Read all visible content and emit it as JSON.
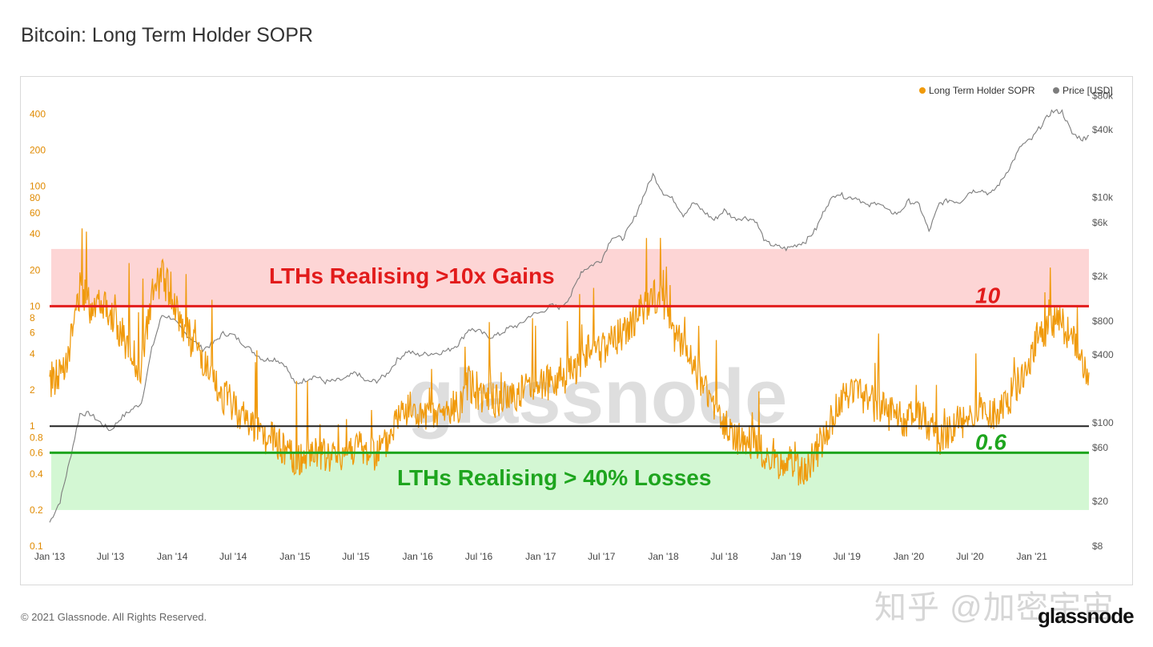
{
  "page": {
    "title": "Bitcoin: Long Term Holder SOPR",
    "footer": "© 2021 Glassnode. All Rights Reserved.",
    "brand_logo": "glassnode",
    "chart_watermark": "glassnode",
    "cn_watermark": "知乎 @加密宇宙"
  },
  "colors": {
    "sopr": "#f09a0c",
    "price": "#7d7d7d",
    "gain_band": "#fdd5d5",
    "loss_band": "#d3f7d3",
    "line_10": "#e21b1b",
    "line_06": "#1ea51e",
    "line_1": "#222222",
    "left_tick": "#e08a00",
    "right_tick": "#555555"
  },
  "chart_data": {
    "type": "line",
    "title": "Bitcoin: Long Term Holder SOPR",
    "legend": {
      "placement": "top-right",
      "entries": [
        "Long Term Holder SOPR",
        "Price [USD]"
      ]
    },
    "x_ticks": [
      "Jan '13",
      "Jul '13",
      "Jan '14",
      "Jul '14",
      "Jan '15",
      "Jul '15",
      "Jan '16",
      "Jul '16",
      "Jan '17",
      "Jul '17",
      "Jan '18",
      "Jul '18",
      "Jan '19",
      "Jul '19",
      "Jan '20",
      "Jul '20",
      "Jan '21"
    ],
    "xlim": [
      "2013-01-01",
      "2021-06-20"
    ],
    "y_left": {
      "scale": "log",
      "range": [
        0.1,
        600
      ],
      "ticks": [
        "400",
        "200",
        "100",
        "80",
        "60",
        "40",
        "20",
        "10",
        "8",
        "6",
        "4",
        "2",
        "1",
        "0.8",
        "0.6",
        "0.4",
        "0.2",
        "0.1"
      ]
    },
    "y_right": {
      "scale": "log",
      "range": [
        8,
        85000
      ],
      "ticks": [
        "$80k",
        "$40k",
        "$10k",
        "$6k",
        "$2k",
        "$800",
        "$400",
        "$100",
        "$60",
        "$20",
        "$8"
      ]
    },
    "grid": false,
    "series": [
      {
        "name": "Long Term Holder SOPR",
        "axis": "left",
        "points": [
          [
            "2013-01-01",
            2.2
          ],
          [
            "2013-02-01",
            2.8
          ],
          [
            "2013-03-01",
            4.5
          ],
          [
            "2013-04-01",
            14
          ],
          [
            "2013-05-01",
            10
          ],
          [
            "2013-06-01",
            12
          ],
          [
            "2013-07-01",
            9
          ],
          [
            "2013-08-01",
            6
          ],
          [
            "2013-09-01",
            4
          ],
          [
            "2013-10-01",
            3
          ],
          [
            "2013-11-01",
            12
          ],
          [
            "2013-12-01",
            18
          ],
          [
            "2014-01-01",
            12
          ],
          [
            "2014-02-01",
            7
          ],
          [
            "2014-03-01",
            5
          ],
          [
            "2014-04-01",
            3.5
          ],
          [
            "2014-05-01",
            2.2
          ],
          [
            "2014-06-01",
            1.8
          ],
          [
            "2014-07-01",
            1.5
          ],
          [
            "2014-08-01",
            1.2
          ],
          [
            "2014-09-01",
            1.0
          ],
          [
            "2014-10-01",
            0.8
          ],
          [
            "2014-11-01",
            0.75
          ],
          [
            "2014-12-01",
            0.65
          ],
          [
            "2015-01-01",
            0.5
          ],
          [
            "2015-02-01",
            0.55
          ],
          [
            "2015-03-01",
            0.6
          ],
          [
            "2015-04-01",
            0.55
          ],
          [
            "2015-05-01",
            0.55
          ],
          [
            "2015-06-01",
            0.6
          ],
          [
            "2015-07-01",
            0.7
          ],
          [
            "2015-08-01",
            0.6
          ],
          [
            "2015-09-01",
            0.6
          ],
          [
            "2015-10-01",
            0.7
          ],
          [
            "2015-11-01",
            1.2
          ],
          [
            "2015-12-01",
            1.4
          ],
          [
            "2016-01-01",
            1.2
          ],
          [
            "2016-02-01",
            1.1
          ],
          [
            "2016-03-01",
            1.2
          ],
          [
            "2016-04-01",
            1.3
          ],
          [
            "2016-05-01",
            1.5
          ],
          [
            "2016-06-01",
            2.2
          ],
          [
            "2016-07-01",
            1.9
          ],
          [
            "2016-08-01",
            1.7
          ],
          [
            "2016-09-01",
            1.6
          ],
          [
            "2016-10-01",
            1.8
          ],
          [
            "2016-11-01",
            1.9
          ],
          [
            "2016-12-01",
            2.2
          ],
          [
            "2017-01-01",
            2.4
          ],
          [
            "2017-02-01",
            2.2
          ],
          [
            "2017-03-01",
            2.5
          ],
          [
            "2017-04-01",
            2.8
          ],
          [
            "2017-05-01",
            3.5
          ],
          [
            "2017-06-01",
            4.5
          ],
          [
            "2017-07-01",
            4.0
          ],
          [
            "2017-08-01",
            5.0
          ],
          [
            "2017-09-01",
            6.0
          ],
          [
            "2017-10-01",
            7.0
          ],
          [
            "2017-11-01",
            9.0
          ],
          [
            "2017-12-01",
            12.0
          ],
          [
            "2018-01-01",
            11.0
          ],
          [
            "2018-02-01",
            6.0
          ],
          [
            "2018-03-01",
            4.5
          ],
          [
            "2018-04-01",
            3.0
          ],
          [
            "2018-05-01",
            2.2
          ],
          [
            "2018-06-01",
            1.4
          ],
          [
            "2018-07-01",
            1.0
          ],
          [
            "2018-08-01",
            0.8
          ],
          [
            "2018-09-01",
            0.75
          ],
          [
            "2018-10-01",
            0.7
          ],
          [
            "2018-11-01",
            0.6
          ],
          [
            "2018-12-01",
            0.45
          ],
          [
            "2019-01-01",
            0.5
          ],
          [
            "2019-02-01",
            0.45
          ],
          [
            "2019-03-01",
            0.45
          ],
          [
            "2019-04-01",
            0.6
          ],
          [
            "2019-05-01",
            0.9
          ],
          [
            "2019-06-01",
            1.4
          ],
          [
            "2019-07-01",
            2.0
          ],
          [
            "2019-08-01",
            1.9
          ],
          [
            "2019-09-01",
            1.6
          ],
          [
            "2019-10-01",
            1.5
          ],
          [
            "2019-11-01",
            1.3
          ],
          [
            "2019-12-01",
            1.2
          ],
          [
            "2020-01-01",
            1.1
          ],
          [
            "2020-02-01",
            1.3
          ],
          [
            "2020-03-01",
            1.0
          ],
          [
            "2020-04-01",
            0.8
          ],
          [
            "2020-05-01",
            0.9
          ],
          [
            "2020-06-01",
            1.1
          ],
          [
            "2020-07-01",
            1.2
          ],
          [
            "2020-08-01",
            1.4
          ],
          [
            "2020-09-01",
            1.2
          ],
          [
            "2020-10-01",
            1.4
          ],
          [
            "2020-11-01",
            1.8
          ],
          [
            "2020-12-01",
            2.5
          ],
          [
            "2021-01-01",
            4.0
          ],
          [
            "2021-02-01",
            6.0
          ],
          [
            "2021-03-01",
            7.5
          ],
          [
            "2021-04-01",
            7.0
          ],
          [
            "2021-05-01",
            5.5
          ],
          [
            "2021-06-01",
            3.0
          ],
          [
            "2021-06-20",
            2.8
          ]
        ]
      },
      {
        "name": "Price [USD]",
        "axis": "right",
        "points": [
          [
            "2013-01-01",
            13
          ],
          [
            "2013-02-01",
            20
          ],
          [
            "2013-03-01",
            45
          ],
          [
            "2013-04-01",
            120
          ],
          [
            "2013-05-01",
            120
          ],
          [
            "2013-06-01",
            100
          ],
          [
            "2013-07-01",
            85
          ],
          [
            "2013-08-01",
            110
          ],
          [
            "2013-09-01",
            130
          ],
          [
            "2013-10-01",
            150
          ],
          [
            "2013-11-01",
            450
          ],
          [
            "2013-12-01",
            900
          ],
          [
            "2014-01-01",
            850
          ],
          [
            "2014-02-01",
            650
          ],
          [
            "2014-03-01",
            550
          ],
          [
            "2014-04-01",
            450
          ],
          [
            "2014-05-01",
            500
          ],
          [
            "2014-06-01",
            620
          ],
          [
            "2014-07-01",
            600
          ],
          [
            "2014-08-01",
            500
          ],
          [
            "2014-09-01",
            420
          ],
          [
            "2014-10-01",
            360
          ],
          [
            "2014-11-01",
            370
          ],
          [
            "2014-12-01",
            330
          ],
          [
            "2015-01-01",
            220
          ],
          [
            "2015-02-01",
            240
          ],
          [
            "2015-03-01",
            260
          ],
          [
            "2015-04-01",
            230
          ],
          [
            "2015-05-01",
            235
          ],
          [
            "2015-06-01",
            245
          ],
          [
            "2015-07-01",
            280
          ],
          [
            "2015-08-01",
            230
          ],
          [
            "2015-09-01",
            235
          ],
          [
            "2015-10-01",
            270
          ],
          [
            "2015-11-01",
            360
          ],
          [
            "2015-12-01",
            430
          ],
          [
            "2016-01-01",
            400
          ],
          [
            "2016-02-01",
            410
          ],
          [
            "2016-03-01",
            415
          ],
          [
            "2016-04-01",
            440
          ],
          [
            "2016-05-01",
            500
          ],
          [
            "2016-06-01",
            680
          ],
          [
            "2016-07-01",
            650
          ],
          [
            "2016-08-01",
            575
          ],
          [
            "2016-09-01",
            610
          ],
          [
            "2016-10-01",
            700
          ],
          [
            "2016-11-01",
            740
          ],
          [
            "2016-12-01",
            900
          ],
          [
            "2017-01-01",
            950
          ],
          [
            "2017-02-01",
            1100
          ],
          [
            "2017-03-01",
            1050
          ],
          [
            "2017-04-01",
            1350
          ],
          [
            "2017-05-01",
            2200
          ],
          [
            "2017-06-01",
            2500
          ],
          [
            "2017-07-01",
            2800
          ],
          [
            "2017-08-01",
            4500
          ],
          [
            "2017-09-01",
            4300
          ],
          [
            "2017-10-01",
            6000
          ],
          [
            "2017-11-01",
            10000
          ],
          [
            "2017-12-01",
            16000
          ],
          [
            "2018-01-01",
            11000
          ],
          [
            "2018-02-01",
            9500
          ],
          [
            "2018-03-01",
            7000
          ],
          [
            "2018-04-01",
            9000
          ],
          [
            "2018-05-01",
            7500
          ],
          [
            "2018-06-01",
            6300
          ],
          [
            "2018-07-01",
            7700
          ],
          [
            "2018-08-01",
            6500
          ],
          [
            "2018-09-01",
            6600
          ],
          [
            "2018-10-01",
            6300
          ],
          [
            "2018-11-01",
            4000
          ],
          [
            "2018-12-01",
            3700
          ],
          [
            "2019-01-01",
            3500
          ],
          [
            "2019-02-01",
            3800
          ],
          [
            "2019-03-01",
            4100
          ],
          [
            "2019-04-01",
            5300
          ],
          [
            "2019-05-01",
            8500
          ],
          [
            "2019-06-01",
            11000
          ],
          [
            "2019-07-01",
            10000
          ],
          [
            "2019-08-01",
            10000
          ],
          [
            "2019-09-01",
            8300
          ],
          [
            "2019-10-01",
            9200
          ],
          [
            "2019-11-01",
            7500
          ],
          [
            "2019-12-01",
            7200
          ],
          [
            "2020-01-01",
            9300
          ],
          [
            "2020-02-01",
            8600
          ],
          [
            "2020-03-01",
            5000
          ],
          [
            "2020-04-01",
            8800
          ],
          [
            "2020-05-01",
            9500
          ],
          [
            "2020-06-01",
            9100
          ],
          [
            "2020-07-01",
            11300
          ],
          [
            "2020-08-01",
            11700
          ],
          [
            "2020-09-01",
            10700
          ],
          [
            "2020-10-01",
            13800
          ],
          [
            "2020-11-01",
            19700
          ],
          [
            "2020-12-01",
            29000
          ],
          [
            "2021-01-01",
            33000
          ],
          [
            "2021-02-01",
            45000
          ],
          [
            "2021-03-01",
            58000
          ],
          [
            "2021-04-01",
            58000
          ],
          [
            "2021-05-01",
            37000
          ],
          [
            "2021-06-01",
            33000
          ],
          [
            "2021-06-20",
            35500
          ]
        ]
      }
    ],
    "reference_lines": [
      {
        "value": 10,
        "label": "10",
        "color_key": "line_10"
      },
      {
        "value": 1,
        "label": "",
        "color_key": "line_1"
      },
      {
        "value": 0.6,
        "label": "0.6",
        "color_key": "line_06"
      }
    ],
    "bands": [
      {
        "from": 10,
        "to": 30,
        "label": "LTHs Realising >10x Gains",
        "color_key": "gain_band",
        "label_color_key": "line_10"
      },
      {
        "from": 0.2,
        "to": 0.6,
        "label": "LTHs Realising > 40% Losses",
        "color_key": "loss_band",
        "label_color_key": "line_06"
      }
    ]
  }
}
